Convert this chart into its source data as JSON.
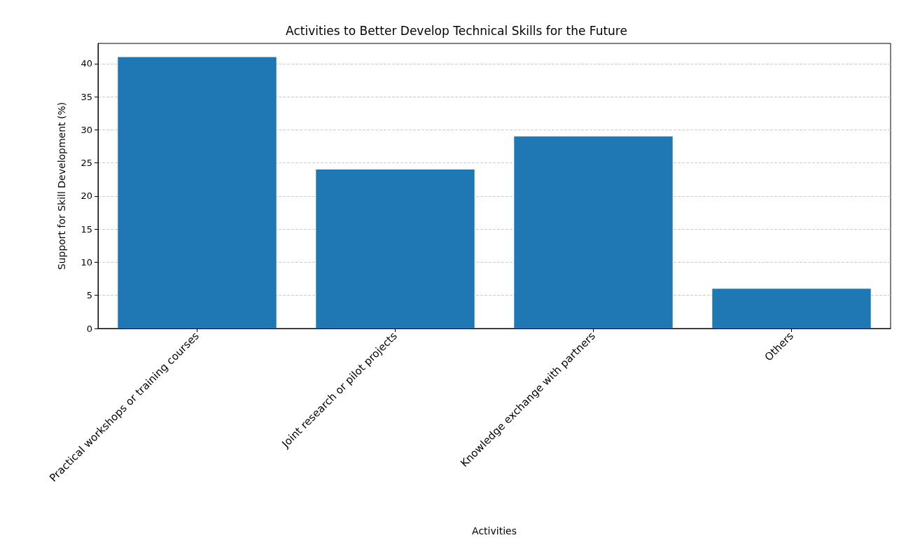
{
  "chart_data": {
    "type": "bar",
    "title": "Activities to Better Develop Technical Skills for the Future",
    "xlabel": "Activities",
    "ylabel": "Support for Skill Development (%)",
    "categories": [
      "Practical workshops or training courses",
      "Joint research or pilot projects",
      "Knowledge exchange with partners",
      "Others"
    ],
    "values": [
      41,
      24,
      29,
      6
    ],
    "color": "#1f77b4",
    "ylim": [
      0,
      43.05
    ],
    "yticks": [
      0,
      5,
      10,
      15,
      20,
      25,
      30,
      35,
      40
    ],
    "grid": "y"
  }
}
